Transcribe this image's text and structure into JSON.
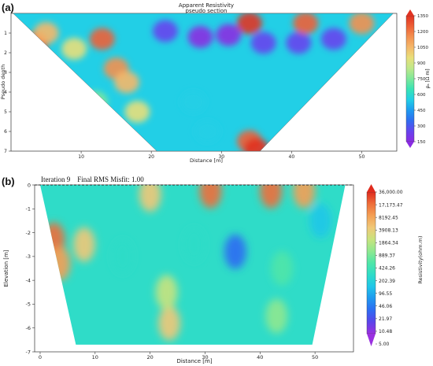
{
  "chart_data": [
    {
      "type": "heatmap",
      "panel_label": "(a)",
      "title": "Apparent Resistivity",
      "subtitle": "pseudo section",
      "xlabel": "Distance [m]",
      "ylabel": "Pseudo depth",
      "xlim": [
        0,
        55
      ],
      "ylim": [
        7,
        0
      ],
      "xticks": [
        10,
        20,
        30,
        40,
        50
      ],
      "yticks": [
        1,
        2,
        3,
        4,
        5,
        6,
        7
      ],
      "colorbar_label": "ρₐ [Ω m]",
      "colorbar_ticks": [
        "150",
        "300",
        "450",
        "600",
        "750",
        "900",
        "1050",
        "1200",
        "1350"
      ],
      "colormap": [
        "#8a2be2",
        "#6644ee",
        "#2f6df0",
        "#1e9bf0",
        "#22cfe6",
        "#39e3b5",
        "#7fe89a",
        "#bfe88a",
        "#e8df7a",
        "#f5b86a",
        "#f39150",
        "#ee6036",
        "#e13322"
      ],
      "triangle": {
        "left_top_x": 0.3,
        "right_top_x": 54.5,
        "bottom_left_x": 20.8,
        "bottom_right_x": 35.5,
        "bottom_depth": 7
      },
      "value_range": [
        150,
        1350
      ],
      "features": [
        {
          "x": 3,
          "y": 1.8,
          "value": 1350
        },
        {
          "x": 3.5,
          "y": 1.5,
          "value": 1300
        },
        {
          "x": 5,
          "y": 1.0,
          "value": 1050
        },
        {
          "x": 9,
          "y": 1.8,
          "value": 900
        },
        {
          "x": 13,
          "y": 1.3,
          "value": 1200
        },
        {
          "x": 15,
          "y": 2.8,
          "value": 1150
        },
        {
          "x": 16.5,
          "y": 3.5,
          "value": 1000
        },
        {
          "x": 18,
          "y": 5,
          "value": 950
        },
        {
          "x": 12,
          "y": 4.5,
          "value": 700
        },
        {
          "x": 22,
          "y": 0.9,
          "value": 200
        },
        {
          "x": 27,
          "y": 1.2,
          "value": 150
        },
        {
          "x": 31,
          "y": 1.1,
          "value": 180
        },
        {
          "x": 36,
          "y": 1.5,
          "value": 200
        },
        {
          "x": 41,
          "y": 1.5,
          "value": 220
        },
        {
          "x": 46,
          "y": 1.3,
          "value": 230
        },
        {
          "x": 34,
          "y": 0.5,
          "value": 1300
        },
        {
          "x": 42,
          "y": 0.5,
          "value": 1200
        },
        {
          "x": 50,
          "y": 0.5,
          "value": 1100
        },
        {
          "x": 26,
          "y": 4.5,
          "value": 500
        },
        {
          "x": 34,
          "y": 6.5,
          "value": 1200
        },
        {
          "x": 35,
          "y": 6.9,
          "value": 1350
        },
        {
          "x": 28,
          "y": 6,
          "value": 550
        }
      ]
    },
    {
      "type": "heatmap",
      "panel_label": "(b)",
      "title": "Iteration 9    Final RMS Misfit: 1.00",
      "xlabel": "Distance [m]",
      "ylabel": "Elevation [m]",
      "xlim": [
        -1,
        57
      ],
      "ylim": [
        -7,
        0
      ],
      "xticks": [
        0,
        10,
        20,
        30,
        40,
        50
      ],
      "yticks": [
        0,
        -1,
        -2,
        -3,
        -4,
        -5,
        -6,
        -7
      ],
      "colorbar_label": "Resistivity(ohm.m)",
      "colorbar_ticks": [
        "5.00",
        "10.48",
        "21.97",
        "46.06",
        "96.55",
        "202.39",
        "424.26",
        "889.37",
        "1864.34",
        "3908.13",
        "8192.45",
        "17,173.47",
        "36,000.00"
      ],
      "colormap": [
        "#9a30e0",
        "#5b44ea",
        "#2e6cf2",
        "#1f98f0",
        "#20c6e8",
        "#2fdcc8",
        "#4fe6a8",
        "#8fe890",
        "#c8e37e",
        "#f0c878",
        "#f4a055",
        "#ee6e3a",
        "#e02b1e"
      ],
      "polygon": {
        "top_left_x": 0,
        "top_right_x": 55.5,
        "bottom_left_x": 6.5,
        "bottom_right_x": 49.5,
        "top_y": 0,
        "bottom_y": -6.7
      },
      "value_range": [
        5,
        36000
      ],
      "features": [
        {
          "x": 2.5,
          "y": -2.3,
          "value": 20000
        },
        {
          "x": 3.5,
          "y": -3.3,
          "value": 9000
        },
        {
          "x": 8,
          "y": -2.5,
          "value": 3000
        },
        {
          "x": 23.5,
          "y": -5.8,
          "value": 3500
        },
        {
          "x": 23,
          "y": -4.5,
          "value": 1500
        },
        {
          "x": 43,
          "y": -5.5,
          "value": 900
        },
        {
          "x": 44,
          "y": -3.5,
          "value": 500
        },
        {
          "x": 35.5,
          "y": -2.8,
          "value": 25
        },
        {
          "x": 15,
          "y": -3,
          "value": 150
        },
        {
          "x": 28,
          "y": -2.5,
          "value": 180
        },
        {
          "x": 51,
          "y": -1.5,
          "value": 120
        },
        {
          "x": 31,
          "y": -0.25,
          "value": 15000
        },
        {
          "x": 42,
          "y": -0.25,
          "value": 12000
        },
        {
          "x": 48,
          "y": -0.25,
          "value": 9000
        },
        {
          "x": 20,
          "y": -0.4,
          "value": 4000
        }
      ]
    }
  ]
}
